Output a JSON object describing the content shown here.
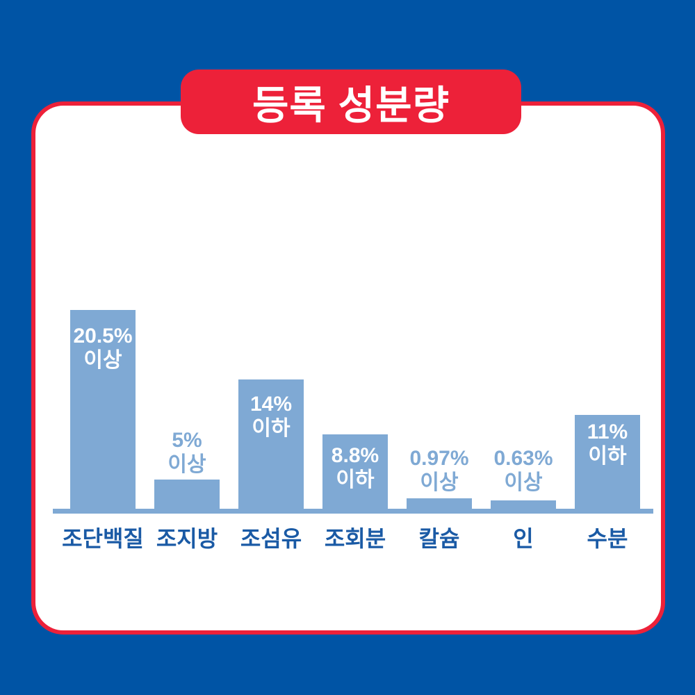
{
  "page": {
    "background_color": "#0054A5"
  },
  "card": {
    "background_color": "#FFFFFF",
    "border_color": "#ED2139"
  },
  "title_badge": {
    "label": "등록 성분량",
    "background_color": "#ED2139",
    "text_color": "#FFFFFF"
  },
  "chart_data": {
    "type": "bar",
    "title": "등록 성분량",
    "xlabel": "",
    "ylabel": "",
    "grid": false,
    "legend_position": "none",
    "bar_color": "#7FA9D4",
    "axis_color": "#7FA9D4",
    "inside_label_color": "#FFFFFF",
    "above_label_color": "#7FA9D4",
    "category_label_color": "#1A5AA5",
    "categories": [
      "조단백질",
      "조지방",
      "조섬유",
      "조회분",
      "칼슘",
      "인",
      "수분"
    ],
    "values": [
      20.5,
      5,
      14,
      8.8,
      0.97,
      0.63,
      11
    ],
    "bars": [
      {
        "category": "조단백질",
        "value": 20.5,
        "value_label": "20.5%",
        "qualifier": "이상",
        "label_position": "inside"
      },
      {
        "category": "조지방",
        "value": 5,
        "value_label": "5%",
        "qualifier": "이상",
        "label_position": "above"
      },
      {
        "category": "조섬유",
        "value": 14,
        "value_label": "14%",
        "qualifier": "이하",
        "label_position": "inside"
      },
      {
        "category": "조회분",
        "value": 8.8,
        "value_label": "8.8%",
        "qualifier": "이하",
        "label_position": "inside"
      },
      {
        "category": "칼슘",
        "value": 0.97,
        "value_label": "0.97%",
        "qualifier": "이상",
        "label_position": "above"
      },
      {
        "category": "인",
        "value": 0.63,
        "value_label": "0.63%",
        "qualifier": "이상",
        "label_position": "above"
      },
      {
        "category": "수분",
        "value": 11,
        "value_label": "11%",
        "qualifier": "이하",
        "label_position": "inside"
      }
    ]
  }
}
